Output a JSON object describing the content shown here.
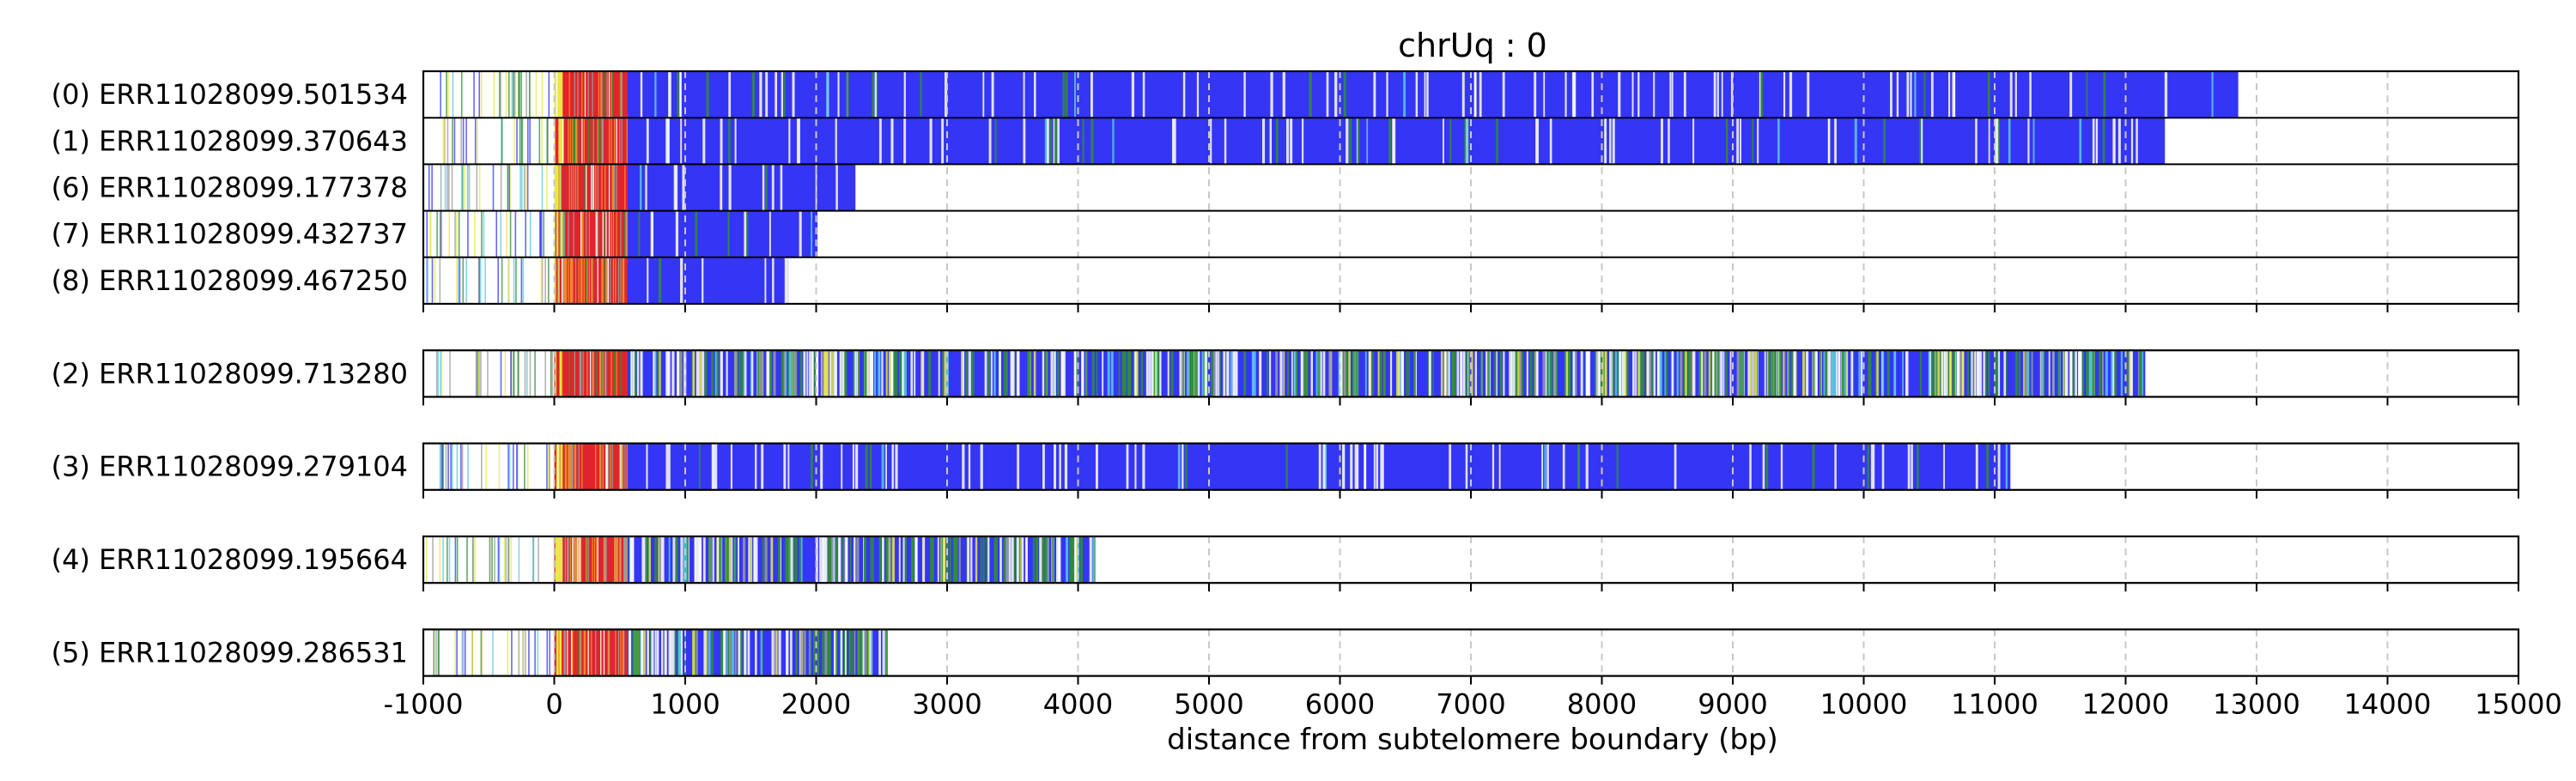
{
  "chart_data": {
    "type": "heatmap",
    "title": "chrUq : 0",
    "xlabel": "distance from subtelomere boundary (bp)",
    "xlim": [
      -1000,
      15000
    ],
    "xticks": [
      -1000,
      0,
      1000,
      2000,
      3000,
      4000,
      5000,
      6000,
      7000,
      8000,
      9000,
      10000,
      11000,
      12000,
      13000,
      14000,
      15000
    ],
    "grid": "vertical dashed",
    "colors": {
      "blue": "#3535f5",
      "red": "#e0252c",
      "green": "#2f8f2f",
      "yellow": "#e8e84a",
      "cyan": "#5bc8e6",
      "orange": "#f08a2a",
      "grey": "#9a9a9a",
      "frame": "#000000",
      "grid": "#c8c8c8"
    },
    "groups": [
      {
        "reads": [
          {
            "label": "(0) ERR11028099.501534",
            "end": 12860
          },
          {
            "label": "(1) ERR11028099.370643",
            "end": 12300
          },
          {
            "label": "(6) ERR11028099.177378",
            "end": 2300
          },
          {
            "label": "(7) ERR11028099.432737",
            "end": 2010
          },
          {
            "label": "(8) ERR11028099.467250",
            "end": 1790
          }
        ]
      },
      {
        "reads": [
          {
            "label": "(2) ERR11028099.713280",
            "end": 12150
          }
        ]
      },
      {
        "reads": [
          {
            "label": "(3) ERR11028099.279104",
            "end": 11120
          }
        ]
      },
      {
        "reads": [
          {
            "label": "(4) ERR11028099.195664",
            "end": 4120
          }
        ]
      },
      {
        "reads": [
          {
            "label": "(5) ERR11028099.286531",
            "end": 2530
          }
        ]
      }
    ]
  }
}
